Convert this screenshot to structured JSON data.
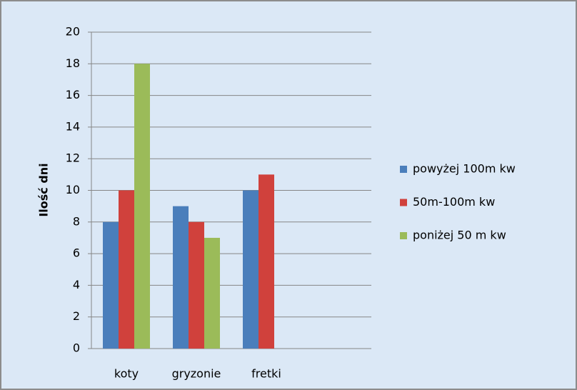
{
  "chart_data": {
    "type": "bar",
    "ylabel": "Ilość dni",
    "categories": [
      "koty",
      "gryzonie",
      "fretki"
    ],
    "series": [
      {
        "name": "powyżej 100m kw",
        "color": "#4a7ebb",
        "values": [
          8,
          9,
          10
        ]
      },
      {
        "name": "50m-100m kw",
        "color": "#d0413c",
        "values": [
          10,
          8,
          11
        ]
      },
      {
        "name": "poniżej 50 m kw",
        "color": "#9bbb59",
        "values": [
          18,
          7,
          null
        ]
      }
    ],
    "ylim": [
      0,
      20
    ],
    "yticks": [
      0,
      2,
      4,
      6,
      8,
      10,
      12,
      14,
      16,
      18,
      20
    ],
    "grid": true,
    "legend": "right"
  }
}
